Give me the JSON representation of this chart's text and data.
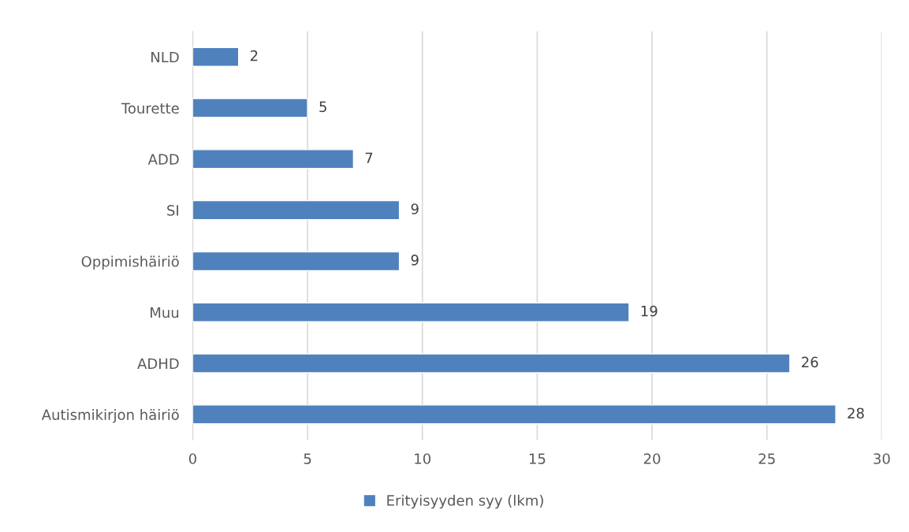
{
  "chart_data": {
    "type": "bar",
    "orientation": "horizontal",
    "categories": [
      "NLD",
      "Tourette",
      "ADD",
      "SI",
      "Oppimishäiriö",
      "Muu",
      "ADHD",
      "Autismikirjon häiriö"
    ],
    "series": [
      {
        "name": "Erityisyyden syy (lkm)",
        "color": "#4f81bd",
        "values": [
          2,
          5,
          7,
          9,
          9,
          19,
          26,
          28
        ]
      }
    ],
    "xlim": [
      0,
      30
    ],
    "xticks": [
      0,
      5,
      10,
      15,
      20,
      25,
      30
    ],
    "grid": "x",
    "legend": "bottom",
    "data_labels": true
  }
}
